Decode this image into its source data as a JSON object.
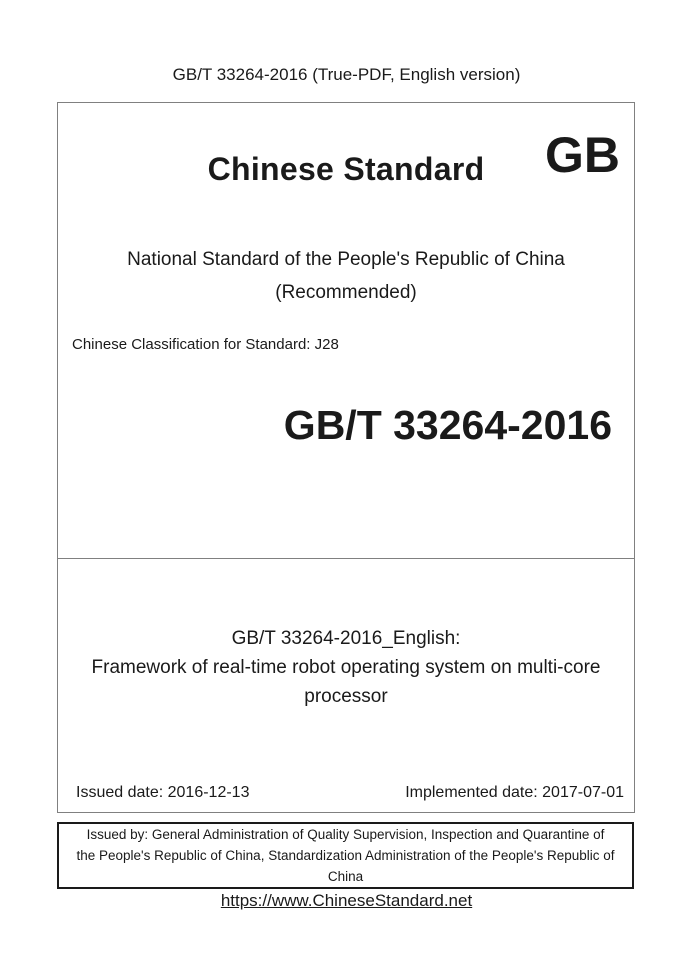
{
  "header": {
    "title": "GB/T 33264-2016 (True-PDF, English version)"
  },
  "cover": {
    "brand": "Chinese Standard",
    "logo": "GB",
    "national_standard_line": "National Standard of the People's Republic of China",
    "recommended_line": "(Recommended)",
    "classification": "Chinese Classification for Standard: J28",
    "standard_code": "GB/T 33264-2016"
  },
  "title_block": {
    "lines": [
      "GB/T 33264-2016_English:",
      "Framework of real-time robot operating system on multi-core",
      "processor"
    ],
    "issued_date_label": "Issued date: 2016-12-13",
    "implemented_date_label": "Implemented date: 2017-07-01"
  },
  "issuer_box": {
    "lines": [
      "Issued by: General Administration of Quality Supervision, Inspection and Quarantine of",
      "the People's Republic of China, Standardization Administration of the People's Republic of",
      "China"
    ]
  },
  "footer": {
    "link": "https://www.ChineseStandard.net"
  },
  "colors": {
    "border_gray": "#808080",
    "border_black": "#1a1a1a",
    "text": "#1a1a1a",
    "background": "#ffffff"
  }
}
